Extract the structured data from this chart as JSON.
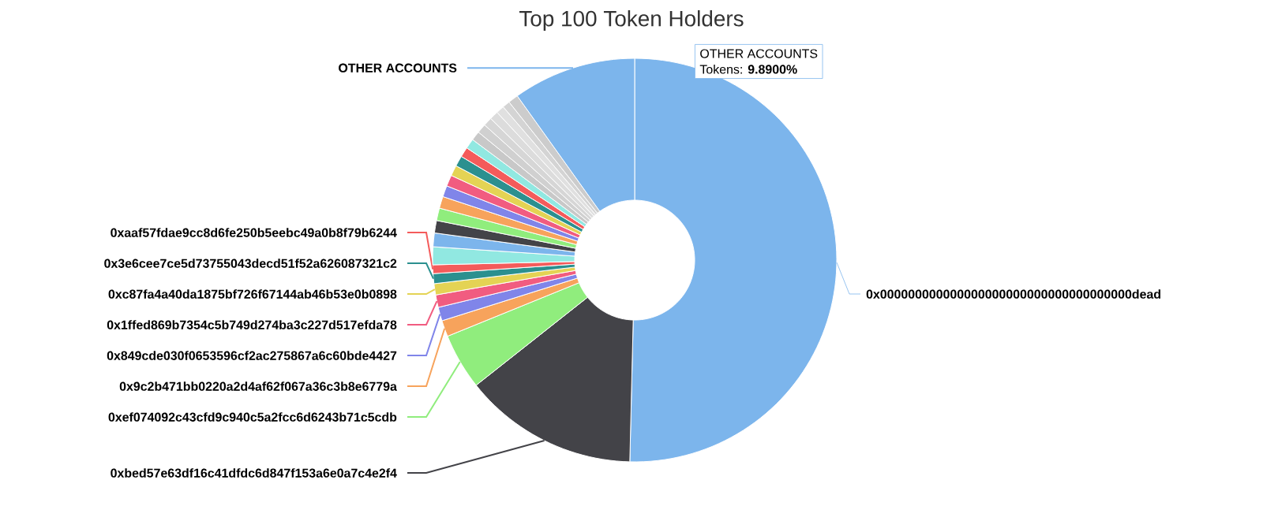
{
  "chart_data": {
    "type": "donut",
    "title": "Top 100 Token Holders",
    "categories": [
      "0x000000000000000000000000000000000000dead",
      "0xbed57e63df16c41dfdc6d847f153a6e0a7c4e2f4",
      "0xef074092c43cfd9c940c5a2fcc6d6243b71c5cdb",
      "0x9c2b471bb0220a2d4af62f067a36c3b8e6779a",
      "0x849cde030f0653596cf2ac275867a6c60bde4427",
      "0x1ffed869b7354c5b749d274ba3c227d517efda78",
      "0xc87fa4a40da1875bf726f67144ab46b53e0b0898",
      "0x3e6cee7ce5d73755043decd51f52a626087321c2",
      "0xaaf57fdae9cc8d6fe250b5eebc49a0b8f79b6244",
      null,
      null,
      null,
      null,
      null,
      null,
      null,
      null,
      null,
      null,
      null,
      null,
      null,
      null,
      null,
      null,
      null,
      null,
      "OTHER ACCOUNTS"
    ],
    "values": [
      50.5,
      14.0,
      4.5,
      1.3,
      1.1,
      1.0,
      0.9,
      0.8,
      0.7,
      1.43,
      1.1,
      1.0,
      1.0,
      0.95,
      0.9,
      0.9,
      0.85,
      0.85,
      0.8,
      0.8,
      0.75,
      0.75,
      0.7,
      0.7,
      0.65,
      0.6,
      0.81,
      9.89
    ],
    "colors": [
      "#7cb5ec",
      "#434348",
      "#90ed7d",
      "#f7a35c",
      "#8085e9",
      "#f15c80",
      "#e4d354",
      "#2b908f",
      "#f45b5b",
      "#91e8e1",
      "#7cb5ec",
      "#434348",
      "#90ed7d",
      "#f7a35c",
      "#8085e9",
      "#f15c80",
      "#e4d354",
      "#2b908f",
      "#f45b5b",
      "#91e8e1",
      "#c8c8c8",
      "#d0d0d0",
      "#d6d6d6",
      "#dcdcdc",
      "#e0e0e0",
      "#d4d4d4",
      "#cccccc",
      "#7cb5ec"
    ],
    "annotations": [
      "OTHER ACCOUNTS",
      "Tokens: **9.8900%**"
    ]
  }
}
